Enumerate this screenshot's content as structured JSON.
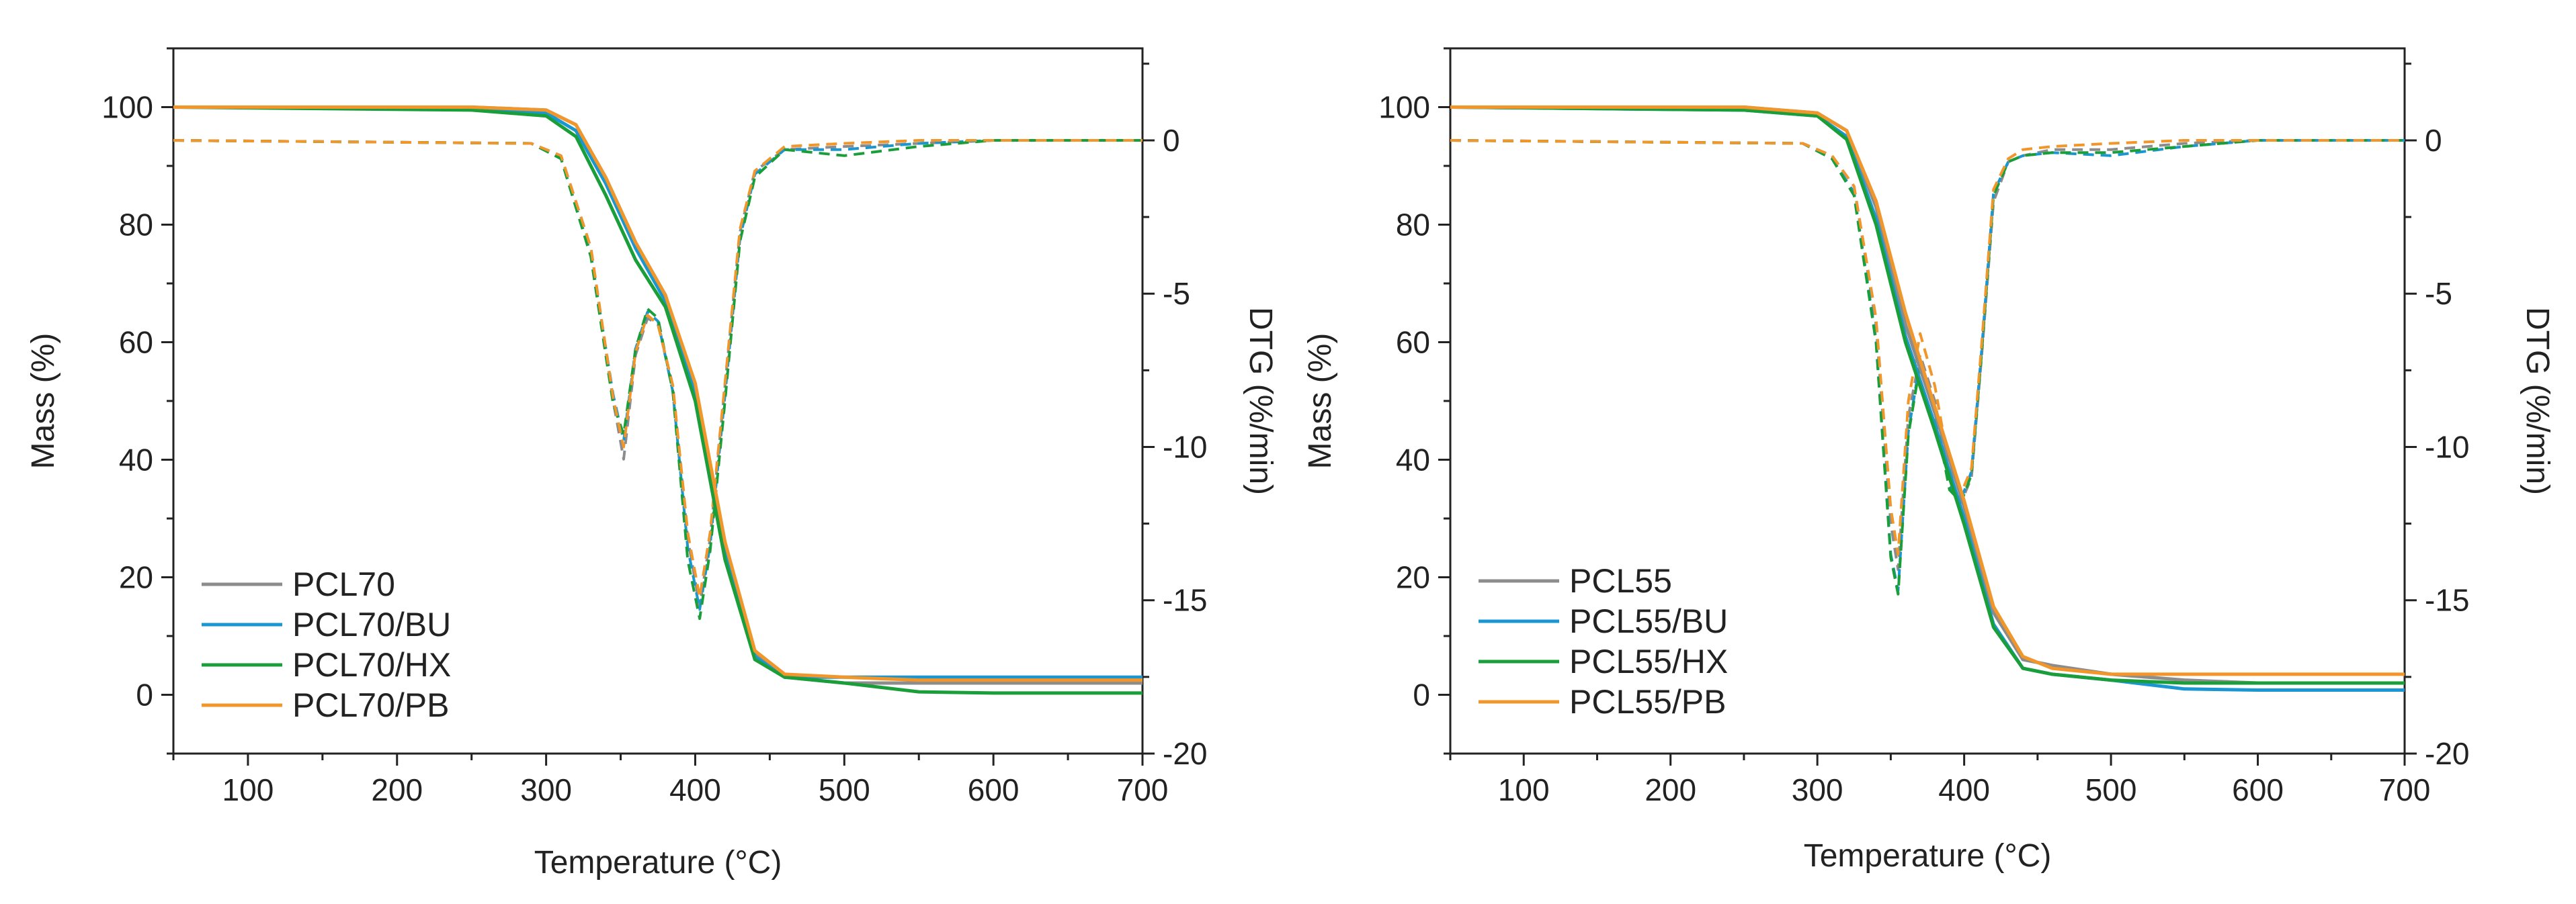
{
  "chart_data": [
    {
      "type": "line",
      "title": "",
      "xlabel": "Temperature (°C)",
      "ylabel": "Mass (%)",
      "y2label": "DTG (%/min)",
      "xlim": [
        50,
        700
      ],
      "ylim": [
        -10,
        110
      ],
      "y2lim": [
        -20,
        3
      ],
      "xticks": [
        100,
        200,
        300,
        400,
        500,
        600,
        700
      ],
      "yticks": [
        0,
        20,
        40,
        60,
        80,
        100
      ],
      "y2ticks": [
        0,
        -5,
        -10,
        -15,
        -20
      ],
      "legend_position": "bottom-left",
      "series": [
        {
          "name": "PCL70",
          "color": "#8c8c8c",
          "mass": {
            "x": [
              50,
              250,
              300,
              320,
              340,
              360,
              380,
              400,
              420,
              440,
              460,
              500,
              550,
              600,
              700
            ],
            "y": [
              100,
              100,
              99.5,
              97,
              88,
              77,
              68,
              52,
              25,
              7,
              3,
              2,
              2,
              2,
              2
            ]
          },
          "dtg": {
            "x": [
              50,
              290,
              310,
              330,
              345,
              352,
              360,
              368,
              375,
              385,
              395,
              403,
              410,
              420,
              430,
              440,
              460,
              500,
              550,
              600,
              700
            ],
            "y": [
              0,
              -0.1,
              -0.5,
              -3.5,
              -8.5,
              -10.4,
              -7,
              -5.8,
              -6,
              -8,
              -13,
              -15.2,
              -13,
              -8,
              -3,
              -1,
              -0.3,
              -0.2,
              -0.1,
              0,
              0
            ]
          }
        },
        {
          "name": "PCL70/BU",
          "color": "#1a96d0",
          "mass": {
            "x": [
              50,
              250,
              300,
              320,
              340,
              360,
              380,
              400,
              420,
              440,
              460,
              500,
              550,
              600,
              700
            ],
            "y": [
              100,
              99.8,
              99,
              96,
              87,
              76,
              67,
              51,
              24,
              6.5,
              3,
              3,
              3,
              3,
              3
            ]
          },
          "dtg": {
            "x": [
              50,
              290,
              310,
              330,
              345,
              352,
              360,
              368,
              375,
              385,
              395,
              403,
              410,
              420,
              430,
              440,
              460,
              500,
              550,
              600,
              700
            ],
            "y": [
              0,
              -0.1,
              -0.6,
              -3.7,
              -8.3,
              -9.8,
              -6.8,
              -5.6,
              -5.9,
              -8.2,
              -13.3,
              -15.3,
              -13.2,
              -8.3,
              -3.2,
              -1.1,
              -0.3,
              -0.3,
              -0.1,
              0,
              0
            ]
          }
        },
        {
          "name": "PCL70/HX",
          "color": "#1a9e3a",
          "mass": {
            "x": [
              50,
              250,
              300,
              320,
              340,
              360,
              380,
              400,
              420,
              440,
              460,
              500,
              550,
              600,
              700
            ],
            "y": [
              100,
              99.5,
              98.5,
              95,
              85,
              74,
              66,
              50,
              23,
              6,
              3,
              2,
              0.5,
              0.3,
              0.3
            ]
          },
          "dtg": {
            "x": [
              50,
              290,
              310,
              330,
              345,
              352,
              360,
              368,
              375,
              385,
              395,
              403,
              410,
              420,
              430,
              440,
              460,
              500,
              550,
              600,
              700
            ],
            "y": [
              0,
              -0.1,
              -0.6,
              -3.8,
              -8.6,
              -9.6,
              -6.8,
              -5.5,
              -5.8,
              -8.2,
              -13.7,
              -15.6,
              -13.4,
              -8.5,
              -3.3,
              -1.2,
              -0.3,
              -0.5,
              -0.2,
              0,
              0
            ]
          }
        },
        {
          "name": "PCL70/PB",
          "color": "#f0962a",
          "mass": {
            "x": [
              50,
              250,
              300,
              320,
              340,
              360,
              380,
              400,
              420,
              440,
              460,
              500,
              550,
              600,
              700
            ],
            "y": [
              100,
              100,
              99.5,
              97,
              88,
              77,
              68,
              53,
              26,
              7.5,
              3.5,
              3,
              2.5,
              2.5,
              2.5
            ]
          },
          "dtg": {
            "x": [
              50,
              290,
              310,
              330,
              345,
              352,
              360,
              368,
              375,
              385,
              395,
              403,
              410,
              420,
              430,
              440,
              460,
              500,
              550,
              600,
              700
            ],
            "y": [
              0,
              -0.1,
              -0.5,
              -3.5,
              -8.4,
              -10,
              -6.9,
              -5.7,
              -6,
              -8,
              -12.8,
              -14.9,
              -12.8,
              -7.9,
              -2.9,
              -1,
              -0.2,
              -0.1,
              0,
              0,
              0
            ]
          }
        }
      ],
      "legend": [
        "PCL70",
        "PCL70/BU",
        "PCL70/HX",
        "PCL70/PB"
      ]
    },
    {
      "type": "line",
      "title": "",
      "xlabel": "Temperature (°C)",
      "ylabel": "Mass (%)",
      "y2label": "DTG (%/min)",
      "xlim": [
        50,
        700
      ],
      "ylim": [
        -10,
        110
      ],
      "y2lim": [
        -20,
        3
      ],
      "xticks": [
        100,
        200,
        300,
        400,
        500,
        600,
        700
      ],
      "yticks": [
        0,
        20,
        40,
        60,
        80,
        100
      ],
      "y2ticks": [
        0,
        -5,
        -10,
        -15,
        -20
      ],
      "legend_position": "bottom-left",
      "series": [
        {
          "name": "PCL55",
          "color": "#8c8c8c",
          "mass": {
            "x": [
              50,
              250,
              300,
              320,
              340,
              360,
              380,
              400,
              420,
              440,
              460,
              500,
              550,
              600,
              700
            ],
            "y": [
              100,
              100,
              99,
              96,
              83,
              63,
              48,
              32,
              14,
              6,
              5,
              3.5,
              2.5,
              2,
              2
            ]
          },
          "dtg": {
            "x": [
              50,
              290,
              310,
              325,
              340,
              350,
              355,
              362,
              370,
              380,
              390,
              398,
              405,
              412,
              420,
              430,
              440,
              460,
              500,
              550,
              600,
              700
            ],
            "y": [
              0,
              -0.1,
              -0.5,
              -1.5,
              -6,
              -12.5,
              -14,
              -9,
              -7,
              -8.5,
              -11,
              -11.8,
              -11,
              -7,
              -2,
              -0.7,
              -0.5,
              -0.3,
              -0.3,
              -0.1,
              0,
              0
            ]
          }
        },
        {
          "name": "PCL55/BU",
          "color": "#1a96d0",
          "mass": {
            "x": [
              50,
              250,
              300,
              320,
              340,
              360,
              380,
              400,
              420,
              440,
              460,
              500,
              550,
              600,
              700
            ],
            "y": [
              100,
              99.5,
              98.5,
              95,
              81,
              61,
              46,
              30,
              12,
              4.5,
              3.5,
              2.5,
              1,
              0.8,
              0.8
            ]
          },
          "dtg": {
            "x": [
              50,
              290,
              310,
              325,
              340,
              350,
              355,
              362,
              370,
              380,
              390,
              398,
              405,
              412,
              420,
              430,
              440,
              460,
              500,
              550,
              600,
              700
            ],
            "y": [
              0,
              -0.1,
              -0.6,
              -1.7,
              -6.5,
              -13.5,
              -14.7,
              -9.5,
              -7.2,
              -8.8,
              -11.3,
              -11.7,
              -10.8,
              -6.8,
              -1.7,
              -0.7,
              -0.5,
              -0.4,
              -0.5,
              -0.2,
              0,
              0
            ]
          }
        },
        {
          "name": "PCL55/HX",
          "color": "#1a9e3a",
          "mass": {
            "x": [
              50,
              250,
              300,
              320,
              340,
              360,
              380,
              400,
              420,
              440,
              460,
              500,
              550,
              600,
              700
            ],
            "y": [
              100,
              99.5,
              98.5,
              94.5,
              80,
              60,
              45,
              29,
              11.5,
              4.5,
              3.5,
              2.5,
              2,
              2,
              2
            ]
          },
          "dtg": {
            "x": [
              50,
              290,
              310,
              325,
              340,
              350,
              355,
              362,
              370,
              380,
              390,
              398,
              405,
              412,
              420,
              430,
              440,
              460,
              500,
              550,
              600,
              700
            ],
            "y": [
              0,
              -0.1,
              -0.6,
              -1.8,
              -6.6,
              -13.6,
              -14.8,
              -9.6,
              -7.3,
              -8.9,
              -11.4,
              -11.8,
              -10.9,
              -6.9,
              -1.8,
              -0.7,
              -0.5,
              -0.4,
              -0.4,
              -0.2,
              0,
              0
            ]
          }
        },
        {
          "name": "PCL55/PB",
          "color": "#f0962a",
          "mass": {
            "x": [
              50,
              250,
              300,
              320,
              340,
              360,
              380,
              400,
              420,
              440,
              460,
              500,
              550,
              600,
              700
            ],
            "y": [
              100,
              100,
              99,
              96,
              84,
              65,
              49,
              33,
              15,
              6.5,
              4.5,
              3.5,
              3.5,
              3.5,
              3.5
            ]
          },
          "dtg": {
            "x": [
              50,
              290,
              310,
              325,
              340,
              350,
              355,
              362,
              370,
              380,
              390,
              398,
              405,
              412,
              420,
              430,
              440,
              460,
              500,
              550,
              600,
              700
            ],
            "y": [
              0,
              -0.1,
              -0.5,
              -1.5,
              -5.8,
              -12,
              -13.5,
              -8.5,
              -6.3,
              -8,
              -10.7,
              -11.5,
              -10.7,
              -6.6,
              -1.6,
              -0.6,
              -0.3,
              -0.2,
              -0.1,
              0,
              0,
              0
            ]
          }
        }
      ],
      "legend": [
        "PCL55",
        "PCL55/BU",
        "PCL55/HX",
        "PCL55/PB"
      ]
    }
  ]
}
